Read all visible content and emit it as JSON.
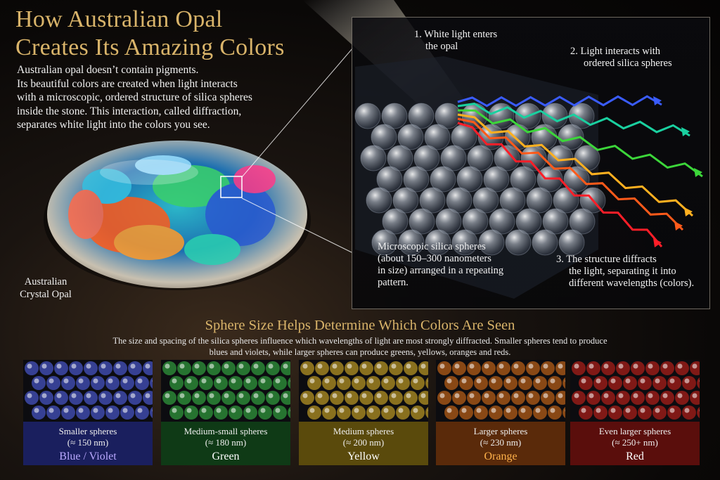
{
  "title": {
    "line1": "How Australian Opal",
    "line2": "Creates Its Amazing Colors"
  },
  "intro": {
    "line1": "Australian opal doesn’t contain pigments.",
    "line2": "Its beautiful colors are created when light interacts",
    "line3": "with a microscopic, ordered structure of silica spheres",
    "line4": "inside the stone. This interaction, called diffraction,",
    "line5": "separates white light into the colors you see."
  },
  "opal_label": {
    "line1": "Australian",
    "line2": "Crystal Opal"
  },
  "panel": {
    "step1": {
      "line1": "1.  White light enters",
      "line2": "the opal"
    },
    "step2": {
      "line1": "2.  Light interacts with",
      "line2": "ordered silica spheres"
    },
    "step3": {
      "line1": "3.  The structure diffracts",
      "line2": "the light, separating it into",
      "line3": "different wavelengths (colors)."
    },
    "spheres_note": {
      "line1": "Microscopic silica spheres",
      "line2": "(about 150–300 nanometers",
      "line3": "in size) arranged in a repeating",
      "line4": "pattern."
    }
  },
  "bottom": {
    "title": "Sphere Size Helps Determine Which Colors Are Seen",
    "desc1": "The size and spacing of the silica spheres influence which wavelengths of light are most strongly diffracted. Smaller spheres tend to produce",
    "desc2": "blues and violets, while larger spheres can produce greens, yellows, oranges and reds."
  },
  "tiles": [
    {
      "size": "Smaller spheres",
      "nm": "(≈ 150 nm)",
      "color_name": "Blue / Violet",
      "accent": "#b9a8ff",
      "cap_bg": "#1a1f5e",
      "glow": "#5a6cff"
    },
    {
      "size": "Medium-small spheres",
      "nm": "(≈ 180 nm)",
      "color_name": "Green",
      "accent": "#ffffff",
      "cap_bg": "#0f3a16",
      "glow": "#3cc84a"
    },
    {
      "size": "Medium spheres",
      "nm": "(≈ 200 nm)",
      "color_name": "Yellow",
      "accent": "#ffffff",
      "cap_bg": "#5a4a0c",
      "glow": "#f0c22a"
    },
    {
      "size": "Larger spheres",
      "nm": "(≈ 230 nm)",
      "color_name": "Orange",
      "accent": "#ffb14a",
      "cap_bg": "#5a2a0a",
      "glow": "#f07a1a"
    },
    {
      "size": "Even larger spheres",
      "nm": "(≈ 250+ nm)",
      "color_name": "Red",
      "accent": "#ffffff",
      "cap_bg": "#5a0e0c",
      "glow": "#e0241c"
    }
  ]
}
